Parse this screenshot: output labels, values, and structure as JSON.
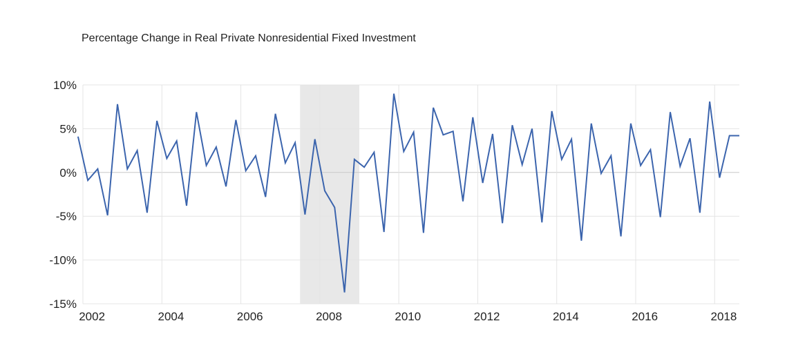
{
  "chart_data": {
    "type": "line",
    "title": "Percentage Change in Real Private Nonresidential Fixed Investment",
    "xlabel": "",
    "ylabel": "",
    "ylim": [
      -15,
      10
    ],
    "xlim": [
      "2001-Q4",
      "2018-Q3"
    ],
    "yticks": [
      {
        "value": 10,
        "label": "10%"
      },
      {
        "value": 5,
        "label": "5%"
      },
      {
        "value": 0,
        "label": "0%"
      },
      {
        "value": -5,
        "label": "-5%"
      },
      {
        "value": -10,
        "label": "-10%"
      },
      {
        "value": -15,
        "label": "-15%"
      }
    ],
    "xticks": [
      {
        "value": "2002-Q1",
        "label": "2002"
      },
      {
        "value": "2004-Q1",
        "label": "2004"
      },
      {
        "value": "2006-Q1",
        "label": "2006"
      },
      {
        "value": "2008-Q1",
        "label": "2008"
      },
      {
        "value": "2010-Q1",
        "label": "2010"
      },
      {
        "value": "2012-Q1",
        "label": "2012"
      },
      {
        "value": "2014-Q1",
        "label": "2014"
      },
      {
        "value": "2016-Q1",
        "label": "2016"
      },
      {
        "value": "2018-Q1",
        "label": "2018"
      }
    ],
    "grid": true,
    "shaded_regions": [
      {
        "from": "2007-Q3",
        "to": "2008-Q4",
        "label": "",
        "color": "#e8e8e8"
      }
    ],
    "series": [
      {
        "name": "",
        "color": "#3b64ad",
        "x": [
          "2001-Q4",
          "2002-Q1",
          "2002-Q2",
          "2002-Q3",
          "2002-Q4",
          "2003-Q1",
          "2003-Q2",
          "2003-Q3",
          "2003-Q4",
          "2004-Q1",
          "2004-Q2",
          "2004-Q3",
          "2004-Q4",
          "2005-Q1",
          "2005-Q2",
          "2005-Q3",
          "2005-Q4",
          "2006-Q1",
          "2006-Q2",
          "2006-Q3",
          "2006-Q4",
          "2007-Q1",
          "2007-Q2",
          "2007-Q3",
          "2007-Q4",
          "2008-Q1",
          "2008-Q2",
          "2008-Q3",
          "2008-Q4",
          "2009-Q1",
          "2009-Q2",
          "2009-Q3",
          "2009-Q4",
          "2010-Q1",
          "2010-Q2",
          "2010-Q3",
          "2010-Q4",
          "2011-Q1",
          "2011-Q2",
          "2011-Q3",
          "2011-Q4",
          "2012-Q1",
          "2012-Q2",
          "2012-Q3",
          "2012-Q4",
          "2013-Q1",
          "2013-Q2",
          "2013-Q3",
          "2013-Q4",
          "2014-Q1",
          "2014-Q2",
          "2014-Q3",
          "2014-Q4",
          "2015-Q1",
          "2015-Q2",
          "2015-Q3",
          "2015-Q4",
          "2016-Q1",
          "2016-Q2",
          "2016-Q3",
          "2016-Q4",
          "2017-Q1",
          "2017-Q2",
          "2017-Q3",
          "2017-Q4",
          "2018-Q1",
          "2018-Q2",
          "2018-Q3"
        ],
        "y": [
          4.1,
          -0.9,
          0.4,
          -4.9,
          7.8,
          0.4,
          2.5,
          -4.6,
          5.9,
          1.6,
          3.6,
          -3.8,
          6.9,
          0.8,
          2.9,
          -1.6,
          6.0,
          0.2,
          1.9,
          -2.8,
          6.7,
          1.1,
          3.4,
          -4.8,
          3.8,
          -2.1,
          -4.0,
          -13.7,
          1.5,
          0.6,
          2.3,
          -6.8,
          9.0,
          2.4,
          4.6,
          -6.9,
          7.4,
          4.3,
          4.7,
          -3.3,
          6.3,
          -1.2,
          4.4,
          -5.8,
          5.4,
          0.9,
          5.0,
          -5.7,
          7.0,
          1.5,
          3.8,
          -7.8,
          5.6,
          -0.1,
          1.9,
          -7.3,
          5.6,
          0.8,
          2.6,
          -5.1,
          6.9,
          0.7,
          3.9,
          -4.6,
          8.1,
          -0.6,
          4.2,
          4.2
        ]
      }
    ]
  }
}
